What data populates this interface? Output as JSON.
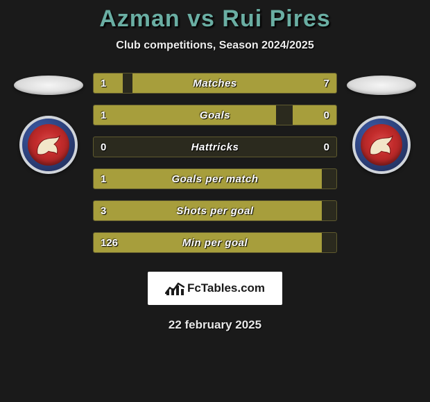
{
  "header": {
    "title_left": "Azman",
    "title_mid": " vs ",
    "title_right": "Rui Pires",
    "subtitle": "Club competitions, Season 2024/2025"
  },
  "colors": {
    "title_color": "#6aaea3",
    "bar_fill": "#a79e3c",
    "bar_border": "#5f5a2e",
    "bar_bg": "#2b2a1e",
    "page_bg": "#1a1a1a"
  },
  "chart": {
    "bar_width_total": 350,
    "rows": [
      {
        "label": "Matches",
        "left_val": "1",
        "right_val": "7",
        "left_pct": 12,
        "right_pct": 84
      },
      {
        "label": "Goals",
        "left_val": "1",
        "right_val": "0",
        "left_pct": 75,
        "right_pct": 18
      },
      {
        "label": "Hattricks",
        "left_val": "0",
        "right_val": "0",
        "left_pct": 0,
        "right_pct": 0
      },
      {
        "label": "Goals per match",
        "left_val": "1",
        "right_val": "",
        "left_pct": 94,
        "right_pct": 0
      },
      {
        "label": "Shots per goal",
        "left_val": "3",
        "right_val": "",
        "left_pct": 94,
        "right_pct": 0
      },
      {
        "label": "Min per goal",
        "left_val": "126",
        "right_val": "",
        "left_pct": 94,
        "right_pct": 0
      }
    ]
  },
  "branding": {
    "text": "FcTables.com"
  },
  "footer": {
    "date": "22 february 2025"
  },
  "crest": {
    "outer": "#2c3f78",
    "inner": "#c22b2b",
    "ring": "#d0d4da"
  }
}
